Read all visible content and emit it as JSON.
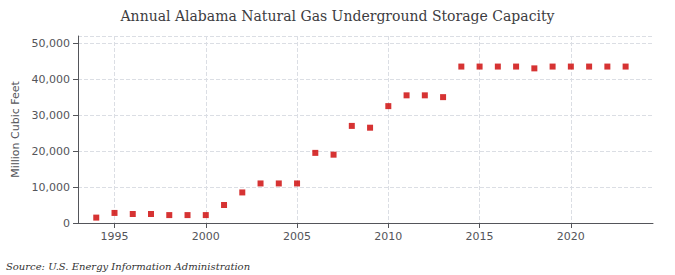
{
  "chart_data": {
    "type": "scatter",
    "title": "Annual Alabama Natural Gas Underground Storage Capacity",
    "ylabel": "Million Cubic Feet",
    "annotations": [
      "Source: U.S. Energy Information Administration"
    ],
    "x": [
      1994,
      1995,
      1996,
      1997,
      1998,
      1999,
      2000,
      2001,
      2002,
      2003,
      2004,
      2005,
      2006,
      2007,
      2008,
      2009,
      2010,
      2011,
      2012,
      2013,
      2014,
      2015,
      2016,
      2017,
      2018,
      2019,
      2020,
      2021,
      2022,
      2023
    ],
    "values": [
      1500,
      2800,
      2500,
      2500,
      2200,
      2200,
      2200,
      5000,
      8500,
      11000,
      11000,
      11000,
      19500,
      19000,
      27000,
      26500,
      32500,
      35500,
      35500,
      35000,
      43500,
      43500,
      43500,
      43500,
      43000,
      43500,
      43500,
      43500,
      43500,
      43500
    ],
    "color": "#cc0000",
    "marker": "square",
    "xlim": [
      1993,
      2024.5
    ],
    "xticks": [
      1995,
      2000,
      2005,
      2010,
      2015,
      2020
    ],
    "ylim": [
      0,
      52000
    ],
    "yticks": [
      0,
      {
        "value": 10000,
        "label": "10,000"
      },
      {
        "value": 20000,
        "label": "20,000"
      },
      {
        "value": 30000,
        "label": "30,000"
      },
      {
        "value": 40000,
        "label": "40,000"
      },
      {
        "value": 50000,
        "label": "50,000"
      }
    ],
    "grid": true
  }
}
